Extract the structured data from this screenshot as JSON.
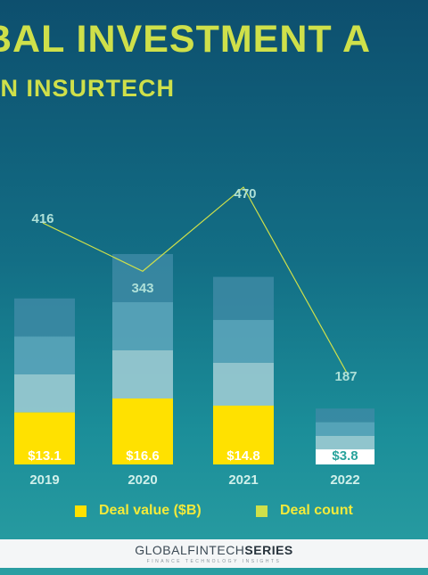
{
  "header": {
    "title": "BAL INVESTMENT A",
    "subtitle": "IN INSURTECH"
  },
  "chart_data": {
    "type": "bar",
    "categories": [
      "2019",
      "2020",
      "2021",
      "2022"
    ],
    "series": [
      {
        "name": "Deal value ($B)",
        "type": "bar",
        "values": [
          13.1,
          16.6,
          14.8,
          3.8
        ],
        "labels": [
          "$13.1",
          "$16.6",
          "$14.8",
          "$3.8"
        ]
      },
      {
        "name": "Deal count",
        "type": "line",
        "values": [
          416,
          343,
          470,
          187
        ],
        "labels": [
          "416",
          "343",
          "470",
          "187"
        ]
      }
    ],
    "title": "",
    "xlabel": "",
    "ylabel": "",
    "legend_position": "bottom",
    "grid": false
  },
  "legend": [
    {
      "label": "Deal value ($B)",
      "color": "#ffe100"
    },
    {
      "label": "Deal count",
      "color": "#cfe04a"
    }
  ],
  "colors": {
    "deal_value": "#ffe100",
    "deal_value_2022": "#ffffff",
    "deal_count_line": "#cfe04a",
    "count_label": "#aee0d8",
    "value_label": "#ffffff",
    "value_label_2022": "#2aa39c",
    "year_label": "#d0f0ea"
  },
  "footer": {
    "logo_main": "GLOBALFINTECH",
    "logo_bold": "SERIES",
    "tagline": "FINANCE TECHNOLOGY INSIGHTS"
  }
}
